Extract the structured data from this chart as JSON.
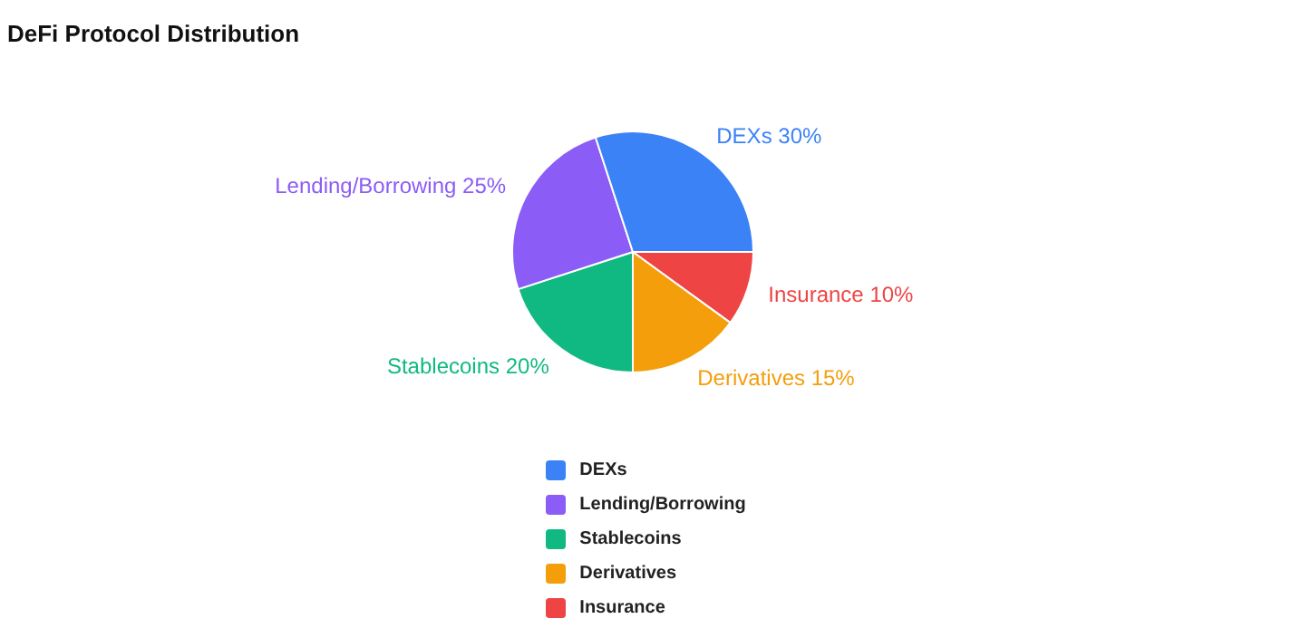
{
  "chart_data": {
    "type": "pie",
    "title": "DeFi Protocol Distribution",
    "categories": [
      "DEXs",
      "Lending/Borrowing",
      "Stablecoins",
      "Derivatives",
      "Insurance"
    ],
    "values": [
      30,
      25,
      20,
      15,
      10
    ],
    "value_labels": [
      "30%",
      "25%",
      "20%",
      "15%",
      "10%"
    ],
    "colors": [
      "#3b82f6",
      "#8b5cf6",
      "#10b981",
      "#f59e0b",
      "#ef4444"
    ],
    "legend": "bottom"
  }
}
